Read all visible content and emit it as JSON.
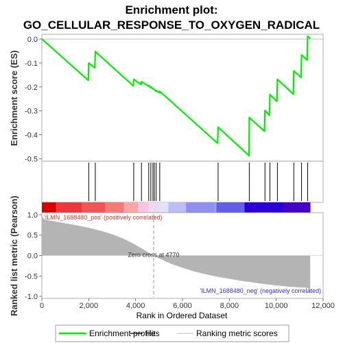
{
  "chart_data": {
    "type": "line",
    "title_line1": "Enrichment plot:",
    "title_line2": "GO_CELLULAR_RESPONSE_TO_OXYGEN_RADICAL",
    "ylabel_es": "Enrichment score (ES)",
    "ylabel_metric": "Ranked list metric (Pearson)",
    "xlabel": "Rank in Ordered Dataset",
    "x_range": [
      0,
      12000
    ],
    "x_ticks": [
      0,
      2000,
      4000,
      6000,
      8000,
      10000,
      12000
    ],
    "x_tick_labels": [
      "0",
      "2,000",
      "4,000",
      "6,000",
      "8,000",
      "10,000",
      "12,000"
    ],
    "es_range": [
      -0.51,
      0.02
    ],
    "es_ticks": [
      0.0,
      -0.1,
      -0.2,
      -0.3,
      -0.4,
      -0.5
    ],
    "es_tick_labels": [
      "0.0",
      "-0.1",
      "-0.2",
      "-0.3",
      "-0.4",
      "-0.5"
    ],
    "metric_range": [
      -1.05,
      1.05
    ],
    "metric_ticks": [
      1.0,
      0.5,
      0.0,
      -0.5,
      -1.0
    ],
    "metric_tick_labels": [
      "1.0",
      "0.5",
      "0.0",
      "-0.5",
      "-1.0"
    ],
    "dataset_size": 11450,
    "hits": [
      2000,
      2280,
      3920,
      4250,
      4560,
      4650,
      4740,
      4800,
      4880,
      5030,
      7520,
      8850,
      9520,
      9730,
      10050,
      10750,
      11080,
      11340
    ],
    "es_profile": {
      "x": [
        0,
        1980,
        2000,
        2260,
        2280,
        3900,
        3920,
        4230,
        4250,
        4540,
        4560,
        4640,
        4650,
        4730,
        4740,
        4790,
        4800,
        4870,
        4880,
        5020,
        5030,
        7500,
        7520,
        8840,
        8850,
        9500,
        9520,
        9710,
        9730,
        10030,
        10050,
        10730,
        10750,
        11060,
        11080,
        11320,
        11340,
        11450
      ],
      "y": [
        0.0,
        -0.172,
        -0.1,
        -0.12,
        -0.052,
        -0.195,
        -0.168,
        -0.19,
        -0.178,
        -0.196,
        -0.194,
        -0.203,
        -0.199,
        -0.207,
        -0.206,
        -0.211,
        -0.211,
        -0.218,
        -0.215,
        -0.225,
        -0.218,
        -0.435,
        -0.368,
        -0.487,
        -0.328,
        -0.385,
        -0.298,
        -0.318,
        -0.232,
        -0.26,
        -0.168,
        -0.23,
        -0.133,
        -0.16,
        -0.066,
        -0.088,
        0.012,
        0.002
      ]
    },
    "metric_profile": {
      "x": [
        0,
        30,
        80,
        200,
        500,
        1000,
        1500,
        2000,
        2500,
        3000,
        3500,
        4000,
        4500,
        4770,
        5000,
        5500,
        6000,
        6500,
        7000,
        7500,
        8000,
        8500,
        9000,
        9500,
        10000,
        10500,
        11000,
        11300,
        11420,
        11450
      ],
      "y": [
        1.0,
        0.95,
        0.9,
        0.87,
        0.84,
        0.79,
        0.74,
        0.68,
        0.61,
        0.52,
        0.41,
        0.26,
        0.09,
        0.0,
        -0.07,
        -0.2,
        -0.3,
        -0.39,
        -0.46,
        -0.52,
        -0.57,
        -0.62,
        -0.66,
        -0.7,
        -0.73,
        -0.76,
        -0.78,
        -0.79,
        -0.82,
        -0.9
      ]
    },
    "zero_cross_rank": 4770,
    "zero_cross_label": "Zero cross at 4770",
    "pos_label": "'ILMN_1688480_pos' (positively correlated)",
    "neg_label": "'ILMN_1688480_neg' (negatively correlated)",
    "heat_bands": [
      {
        "to": 600,
        "color": "#d90000"
      },
      {
        "to": 1700,
        "color": "#ea3838"
      },
      {
        "to": 2700,
        "color": "#f15555"
      },
      {
        "to": 3500,
        "color": "#f47a7a"
      },
      {
        "to": 4100,
        "color": "#f7a7a7"
      },
      {
        "to": 4550,
        "color": "#f8c4e0"
      },
      {
        "to": 5000,
        "color": "#eed8f4"
      },
      {
        "to": 5400,
        "color": "#e2e2fa"
      },
      {
        "to": 6150,
        "color": "#bdbdf6"
      },
      {
        "to": 7350,
        "color": "#8f8ff0"
      },
      {
        "to": 7450,
        "color": "#9b9bf2"
      },
      {
        "to": 8650,
        "color": "#6060e6"
      },
      {
        "to": 10300,
        "color": "#2a00d4"
      },
      {
        "to": 11450,
        "color": "#4400c4"
      }
    ],
    "colors": {
      "es_line": "#00ee00",
      "hit_line": "#000000",
      "metric_fill": "#b4b4b4",
      "pos_label": "#e03030",
      "neg_label": "#3030e0",
      "axis_text": "#333333",
      "zero_line": "#cccccc"
    },
    "legend": [
      {
        "label": "Enrichment profile",
        "kind": "es"
      },
      {
        "label": "Hits",
        "kind": "hits"
      },
      {
        "label": "Ranking metric scores",
        "kind": "metric"
      }
    ]
  }
}
